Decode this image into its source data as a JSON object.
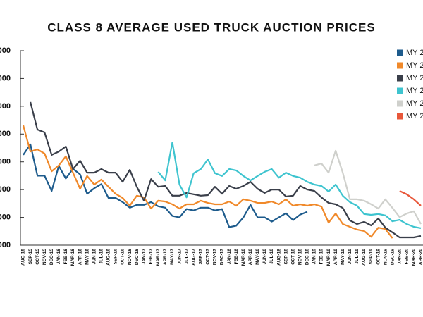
{
  "chart_data": {
    "type": "line",
    "title": "CLASS 8 AVERAGE USED TRUCK AUCTION PRICES",
    "categories": [
      "AUG-15",
      "SEP-15",
      "OCT-15",
      "NOV-15",
      "DEC-15",
      "JAN-16",
      "FEB-16",
      "MAR-16",
      "APR-16",
      "MAY-16",
      "JUN-16",
      "JUL-16",
      "AUG-16",
      "SEP-16",
      "OCT-16",
      "NOV-16",
      "DEC-16",
      "JAN-17",
      "FEB-17",
      "MAR-17",
      "APR-17",
      "MAY-17",
      "JUN-17",
      "JUL-17",
      "AUG-17",
      "SEP-17",
      "OCT-17",
      "NOV-17",
      "DEC-17",
      "JAN-18",
      "FEB-18",
      "MAR-18",
      "APR-18",
      "MAY-18",
      "JUN-18",
      "JUL-18",
      "AUG-18",
      "SEP-18",
      "OCT-18",
      "NOV-18",
      "DEC-18",
      "JAN-19",
      "FEB-19",
      "MAR-19",
      "APR-19",
      "MAY-19",
      "JUN-19",
      "JUL-19",
      "AUG-19",
      "SEP-19",
      "OCT-19",
      "NOV-19",
      "DEC-19",
      "JAN-20",
      "FEB-20",
      "MAR-20",
      "APR-20"
    ],
    "series": [
      {
        "name": "MY 2",
        "color": "#1d5b8c",
        "values": [
          32500,
          36300,
          25000,
          25000,
          19500,
          28500,
          24000,
          27500,
          25500,
          18500,
          20500,
          22000,
          17000,
          17000,
          15500,
          13500,
          14500,
          14500,
          15500,
          14000,
          13500,
          10500,
          10000,
          13000,
          12500,
          13500,
          13500,
          12500,
          13000,
          6500,
          7000,
          10000,
          14500,
          10000,
          10000,
          8500,
          10000,
          11500,
          9000,
          11000,
          12000,
          null,
          null,
          null,
          null,
          null,
          null,
          null,
          null,
          null,
          null,
          null,
          null,
          null,
          null,
          null,
          null
        ]
      },
      {
        "name": "MY 2",
        "color": "#f0892a",
        "values": [
          43100,
          33700,
          34500,
          33000,
          26600,
          28700,
          32000,
          26100,
          20300,
          24900,
          21800,
          23600,
          21000,
          18500,
          17000,
          14200,
          17800,
          17200,
          13200,
          16000,
          15700,
          14700,
          13200,
          14700,
          14700,
          16000,
          15200,
          14700,
          14700,
          15700,
          14200,
          16500,
          16000,
          15200,
          15200,
          15700,
          14700,
          16500,
          14200,
          14700,
          14200,
          14700,
          13900,
          8100,
          11400,
          7600,
          6600,
          5600,
          5100,
          3000,
          6300,
          5800,
          2500,
          null,
          null,
          null,
          null
        ]
      },
      {
        "name": "MY 2",
        "color": "#3a3f4a",
        "values": [
          null,
          51500,
          41600,
          40600,
          32500,
          33700,
          35500,
          27400,
          30400,
          26100,
          26100,
          27400,
          26100,
          26100,
          22800,
          27100,
          21000,
          16000,
          23800,
          21000,
          21300,
          17800,
          17800,
          18800,
          18300,
          17800,
          18000,
          21000,
          18500,
          21300,
          20300,
          21300,
          22800,
          20300,
          18800,
          20000,
          20000,
          17500,
          17800,
          21300,
          20000,
          19500,
          17200,
          15200,
          14700,
          13400,
          8900,
          7600,
          8400,
          7100,
          9600,
          6300,
          4600,
          2800,
          2800,
          2800,
          3300
        ]
      },
      {
        "name": "MY 2",
        "color": "#3ec4cf",
        "values": [
          null,
          null,
          null,
          null,
          null,
          null,
          null,
          null,
          null,
          null,
          null,
          null,
          null,
          null,
          null,
          null,
          null,
          null,
          null,
          26400,
          23300,
          37000,
          21800,
          17200,
          25900,
          27400,
          30900,
          25900,
          24900,
          27400,
          26900,
          24900,
          23300,
          24900,
          26400,
          27400,
          24300,
          26100,
          24900,
          24300,
          22800,
          21800,
          21300,
          19300,
          21800,
          17800,
          15500,
          14200,
          11200,
          10900,
          11200,
          10700,
          8600,
          9100,
          7600,
          6600,
          6100
        ]
      },
      {
        "name": "MY 2",
        "color": "#cfd0cc",
        "values": [
          null,
          null,
          null,
          null,
          null,
          null,
          null,
          null,
          null,
          null,
          null,
          null,
          null,
          null,
          null,
          null,
          null,
          null,
          null,
          null,
          null,
          null,
          null,
          null,
          null,
          null,
          null,
          null,
          null,
          null,
          null,
          null,
          null,
          null,
          null,
          null,
          null,
          null,
          null,
          null,
          null,
          28700,
          29400,
          26100,
          34000,
          26100,
          16500,
          16500,
          16000,
          14700,
          13200,
          16500,
          13400,
          10100,
          11400,
          12200,
          7600
        ]
      },
      {
        "name": "MY 2",
        "color": "#e8573a",
        "values": [
          null,
          null,
          null,
          null,
          null,
          null,
          null,
          null,
          null,
          null,
          null,
          null,
          null,
          null,
          null,
          null,
          null,
          null,
          null,
          null,
          null,
          null,
          null,
          null,
          null,
          null,
          null,
          null,
          null,
          null,
          null,
          null,
          null,
          null,
          null,
          null,
          null,
          null,
          null,
          null,
          null,
          null,
          null,
          null,
          null,
          null,
          null,
          null,
          null,
          null,
          null,
          null,
          null,
          19500,
          18300,
          16500,
          14200
        ]
      }
    ],
    "ylim": [
      0,
      70000
    ],
    "yticks": [
      {
        "value": 0,
        "label": "000"
      },
      {
        "value": 10000,
        "label": "000"
      },
      {
        "value": 20000,
        "label": "000"
      },
      {
        "value": 30000,
        "label": "000"
      },
      {
        "value": 40000,
        "label": "000"
      },
      {
        "value": 50000,
        "label": "000"
      },
      {
        "value": 60000,
        "label": "000"
      },
      {
        "value": 70000,
        "label": "000"
      }
    ],
    "legend": "upper right",
    "grid": false
  }
}
